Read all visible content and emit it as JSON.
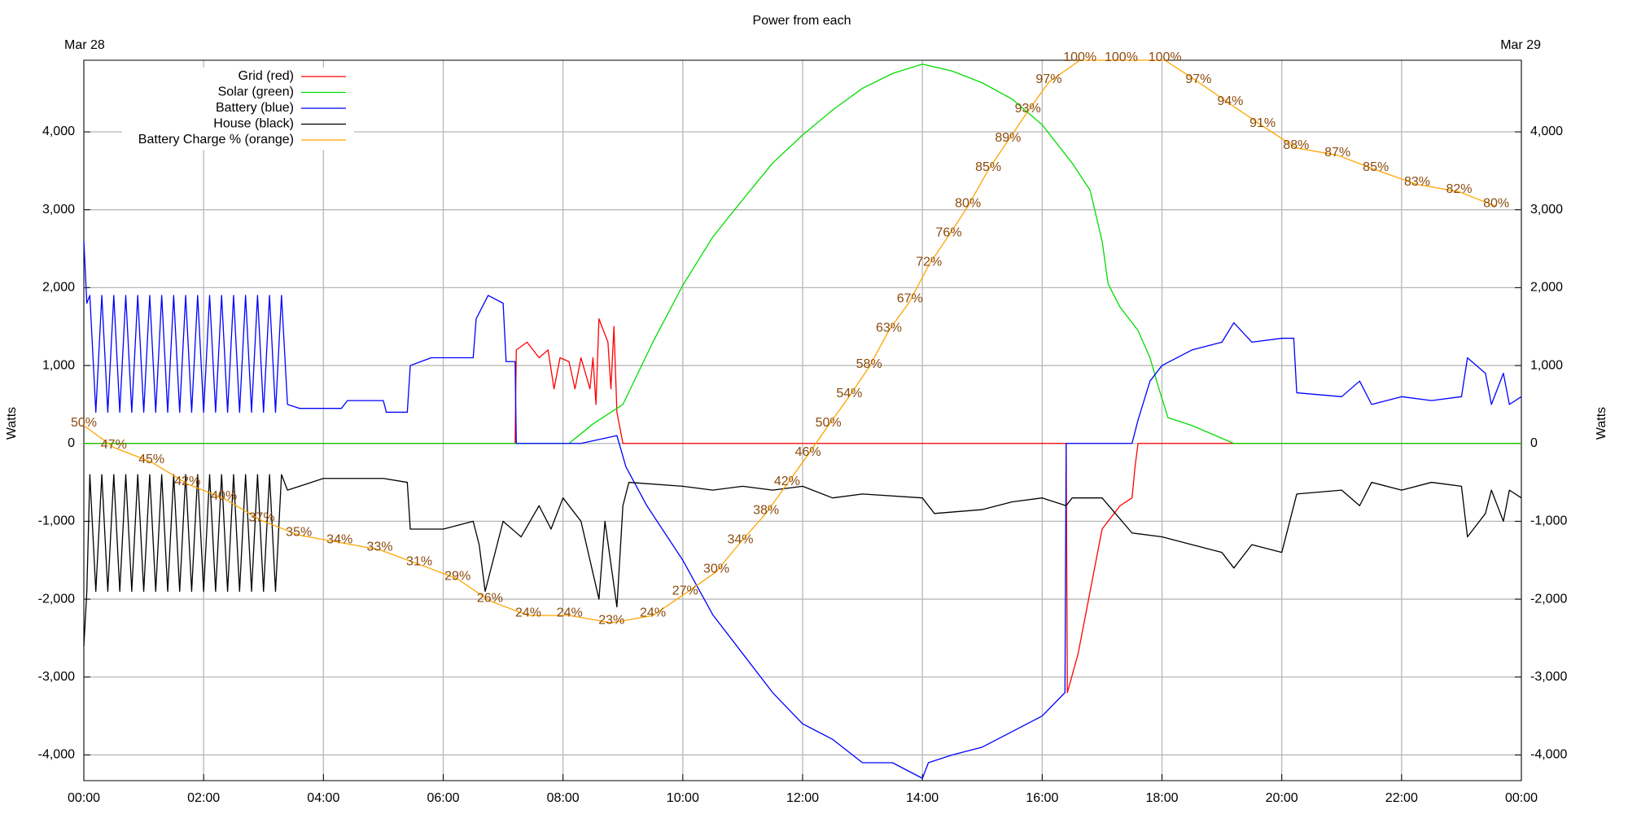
{
  "chart_data": {
    "type": "line",
    "title": "Power from each",
    "annotations": [
      "Mar 28",
      "Mar 29"
    ],
    "ylabel": "Watts",
    "xlim": [
      0,
      24
    ],
    "xticks": [
      {
        "value": 0,
        "label": "00:00"
      },
      {
        "value": 2,
        "label": "02:00"
      },
      {
        "value": 4,
        "label": "04:00"
      },
      {
        "value": 6,
        "label": "06:00"
      },
      {
        "value": 8,
        "label": "08:00"
      },
      {
        "value": 10,
        "label": "10:00"
      },
      {
        "value": 12,
        "label": "12:00"
      },
      {
        "value": 14,
        "label": "14:00"
      },
      {
        "value": 16,
        "label": "16:00"
      },
      {
        "value": 18,
        "label": "18:00"
      },
      {
        "value": 20,
        "label": "20:00"
      },
      {
        "value": 22,
        "label": "22:00"
      },
      {
        "value": 24,
        "label": "00:00"
      }
    ],
    "ylim": [
      -4330,
      4920
    ],
    "yticks": [
      {
        "value": -4000,
        "label": "-4,000"
      },
      {
        "value": -3000,
        "label": "-3,000"
      },
      {
        "value": -2000,
        "label": "-2,000"
      },
      {
        "value": -1000,
        "label": "-1,000"
      },
      0,
      {
        "value": 1000,
        "label": "1,000"
      },
      {
        "value": 2000,
        "label": "2,000"
      },
      {
        "value": 3000,
        "label": "3,000"
      },
      {
        "value": 4000,
        "label": "4,000"
      }
    ],
    "y2lim": [
      1.4,
      100
    ],
    "grid": true,
    "legend": "top-left",
    "series": [
      {
        "name": "Grid (red)",
        "color": "#ff0000",
        "x": [
          0,
          7.2,
          7.22,
          7.4,
          7.6,
          7.75,
          7.85,
          7.95,
          8.1,
          8.2,
          8.3,
          8.45,
          8.5,
          8.55,
          8.6,
          8.75,
          8.8,
          8.85,
          8.9,
          9.0,
          16.4,
          16.42,
          16.6,
          16.8,
          17.0,
          17.3,
          17.5,
          17.55,
          17.6,
          24
        ],
        "values": [
          0,
          0,
          1200,
          1300,
          1100,
          1200,
          700,
          1100,
          1050,
          700,
          1100,
          700,
          1100,
          500,
          1600,
          1300,
          700,
          1500,
          400,
          0,
          0,
          -3200,
          -2700,
          -1900,
          -1100,
          -800,
          -700,
          -300,
          0,
          0
        ]
      },
      {
        "name": "Solar (green)",
        "color": "#00dd00",
        "x": [
          0,
          8.1,
          8.5,
          9,
          9.5,
          10,
          10.5,
          11,
          11.5,
          12,
          12.5,
          13,
          13.5,
          14,
          14.5,
          15,
          15.5,
          16,
          16.5,
          16.8,
          17,
          17.1,
          17.3,
          17.6,
          17.8,
          17.95,
          18.1,
          18.5,
          19.2,
          24
        ],
        "values": [
          0,
          0,
          250,
          500,
          1300,
          2030,
          2650,
          3130,
          3600,
          3960,
          4280,
          4560,
          4750,
          4870,
          4780,
          4630,
          4420,
          4090,
          3600,
          3250,
          2600,
          2050,
          1750,
          1450,
          1100,
          700,
          330,
          230,
          0,
          0
        ]
      },
      {
        "name": "Battery (blue)",
        "color": "#0000ff",
        "x": [
          0,
          0.05,
          0.1,
          0.2,
          0.3,
          0.4,
          0.5,
          0.6,
          0.7,
          0.8,
          0.9,
          1.0,
          1.1,
          1.2,
          1.3,
          1.4,
          1.5,
          1.6,
          1.7,
          1.8,
          1.9,
          2.0,
          2.1,
          2.2,
          2.3,
          2.4,
          2.5,
          2.6,
          2.7,
          2.8,
          2.9,
          3.0,
          3.1,
          3.2,
          3.3,
          3.4,
          3.6,
          4.3,
          4.4,
          5.0,
          5.05,
          5.4,
          5.45,
          5.8,
          6.5,
          6.55,
          6.75,
          7.0,
          7.05,
          7.2,
          7.22,
          8.3,
          8.9,
          9.05,
          9.4,
          10,
          10.5,
          11,
          11.5,
          12,
          12.5,
          13,
          13.5,
          14,
          14.1,
          14.5,
          15,
          15.5,
          16,
          16.38,
          16.4,
          17.5,
          17.6,
          17.8,
          18,
          18.5,
          19,
          19.2,
          19.5,
          20,
          20.2,
          20.25,
          21,
          21.3,
          21.5,
          22,
          22.5,
          23,
          23.1,
          23.4,
          23.5,
          23.7,
          23.8,
          24
        ],
        "values": [
          2600,
          1800,
          1900,
          400,
          1900,
          400,
          1900,
          400,
          1900,
          400,
          1900,
          400,
          1900,
          400,
          1900,
          400,
          1900,
          400,
          1900,
          400,
          1900,
          400,
          1900,
          400,
          1900,
          400,
          1900,
          400,
          1900,
          400,
          1900,
          400,
          1900,
          400,
          1900,
          500,
          450,
          450,
          550,
          550,
          400,
          400,
          1000,
          1100,
          1100,
          1600,
          1900,
          1800,
          1050,
          1050,
          0,
          0,
          100,
          -300,
          -800,
          -1500,
          -2200,
          -2700,
          -3200,
          -3600,
          -3800,
          -4100,
          -4100,
          -4300,
          -4100,
          -4000,
          -3900,
          -3700,
          -3500,
          -3200,
          0,
          0,
          300,
          800,
          1000,
          1200,
          1300,
          1550,
          1300,
          1350,
          1350,
          650,
          600,
          800,
          500,
          600,
          550,
          600,
          1100,
          900,
          500,
          900,
          500,
          600
        ]
      },
      {
        "name": "House (black)",
        "color": "#000000",
        "x": [
          0,
          0.05,
          0.1,
          0.2,
          0.3,
          0.4,
          0.5,
          0.6,
          0.7,
          0.8,
          0.9,
          1.0,
          1.1,
          1.2,
          1.3,
          1.4,
          1.5,
          1.6,
          1.7,
          1.8,
          1.9,
          2.0,
          2.1,
          2.2,
          2.3,
          2.4,
          2.5,
          2.6,
          2.7,
          2.8,
          2.9,
          3.0,
          3.1,
          3.2,
          3.3,
          3.4,
          3.6,
          4,
          5,
          5.4,
          5.45,
          6,
          6.5,
          6.6,
          6.7,
          7,
          7.3,
          7.6,
          7.8,
          8,
          8.3,
          8.6,
          8.7,
          8.9,
          9.0,
          9.1,
          10,
          10.5,
          11,
          11.5,
          12,
          12.5,
          13,
          14,
          14.2,
          15,
          15.5,
          16,
          16.4,
          16.5,
          17,
          17.5,
          18,
          18.5,
          19,
          19.2,
          19.5,
          20,
          20.25,
          21,
          21.3,
          21.5,
          22,
          22.5,
          23,
          23.1,
          23.4,
          23.5,
          23.7,
          23.8,
          24
        ],
        "values": [
          -2600,
          -1900,
          -400,
          -1900,
          -400,
          -1900,
          -400,
          -1900,
          -400,
          -1900,
          -400,
          -1900,
          -400,
          -1900,
          -400,
          -1900,
          -400,
          -1900,
          -400,
          -1900,
          -400,
          -1900,
          -400,
          -1900,
          -400,
          -1900,
          -400,
          -1900,
          -400,
          -1900,
          -400,
          -1900,
          -400,
          -1900,
          -400,
          -600,
          -550,
          -450,
          -450,
          -500,
          -1100,
          -1100,
          -1000,
          -1300,
          -1900,
          -1000,
          -1200,
          -800,
          -1100,
          -700,
          -1000,
          -2000,
          -1000,
          -2100,
          -800,
          -500,
          -550,
          -600,
          -550,
          -600,
          -550,
          -700,
          -650,
          -700,
          -900,
          -850,
          -750,
          -700,
          -800,
          -700,
          -700,
          -1150,
          -1200,
          -1300,
          -1400,
          -1600,
          -1300,
          -1400,
          -650,
          -600,
          -800,
          -500,
          -600,
          -500,
          -550,
          -1200,
          -900,
          -600,
          -1000,
          -600,
          -700
        ]
      },
      {
        "name": "Battery Charge % (orange)",
        "color": "#ffa500",
        "axis": "y2",
        "label_color": "#8b4a0e",
        "x": [
          0,
          0.5,
          1.13,
          1.73,
          2.34,
          2.97,
          3.59,
          4.27,
          4.94,
          5.6,
          6.24,
          6.78,
          7.42,
          8.11,
          8.81,
          9.5,
          10.04,
          10.56,
          10.96,
          11.39,
          11.74,
          12.09,
          12.43,
          12.78,
          13.11,
          13.44,
          13.79,
          14.11,
          14.44,
          14.76,
          15.1,
          15.43,
          15.76,
          16.11,
          16.63,
          17.32,
          18.05,
          18.61,
          19.14,
          19.68,
          20.24,
          20.93,
          21.57,
          22.26,
          22.96,
          23.58
        ],
        "values": [
          50,
          47,
          45,
          42,
          40,
          37,
          35,
          34,
          33,
          31,
          29,
          26,
          24,
          24,
          23,
          24,
          27,
          30,
          34,
          38,
          42,
          46,
          50,
          54,
          58,
          63,
          67,
          72,
          76,
          80,
          85,
          89,
          93,
          97,
          100,
          100,
          100,
          97,
          94,
          91,
          88,
          87,
          85,
          83,
          82,
          80
        ],
        "value_labels": [
          "50%",
          "47%",
          "45%",
          "42%",
          "40%",
          "37%",
          "35%",
          "34%",
          "33%",
          "31%",
          "29%",
          "26%",
          "24%",
          "24%",
          "23%",
          "24%",
          "27%",
          "30%",
          "34%",
          "38%",
          "42%",
          "46%",
          "50%",
          "54%",
          "58%",
          "63%",
          "67%",
          "72%",
          "76%",
          "80%",
          "85%",
          "89%",
          "93%",
          "97%",
          "100%",
          "100%",
          "100%",
          "97%",
          "94%",
          "91%",
          "88%",
          "87%",
          "85%",
          "83%",
          "82%",
          "80%"
        ]
      }
    ]
  }
}
